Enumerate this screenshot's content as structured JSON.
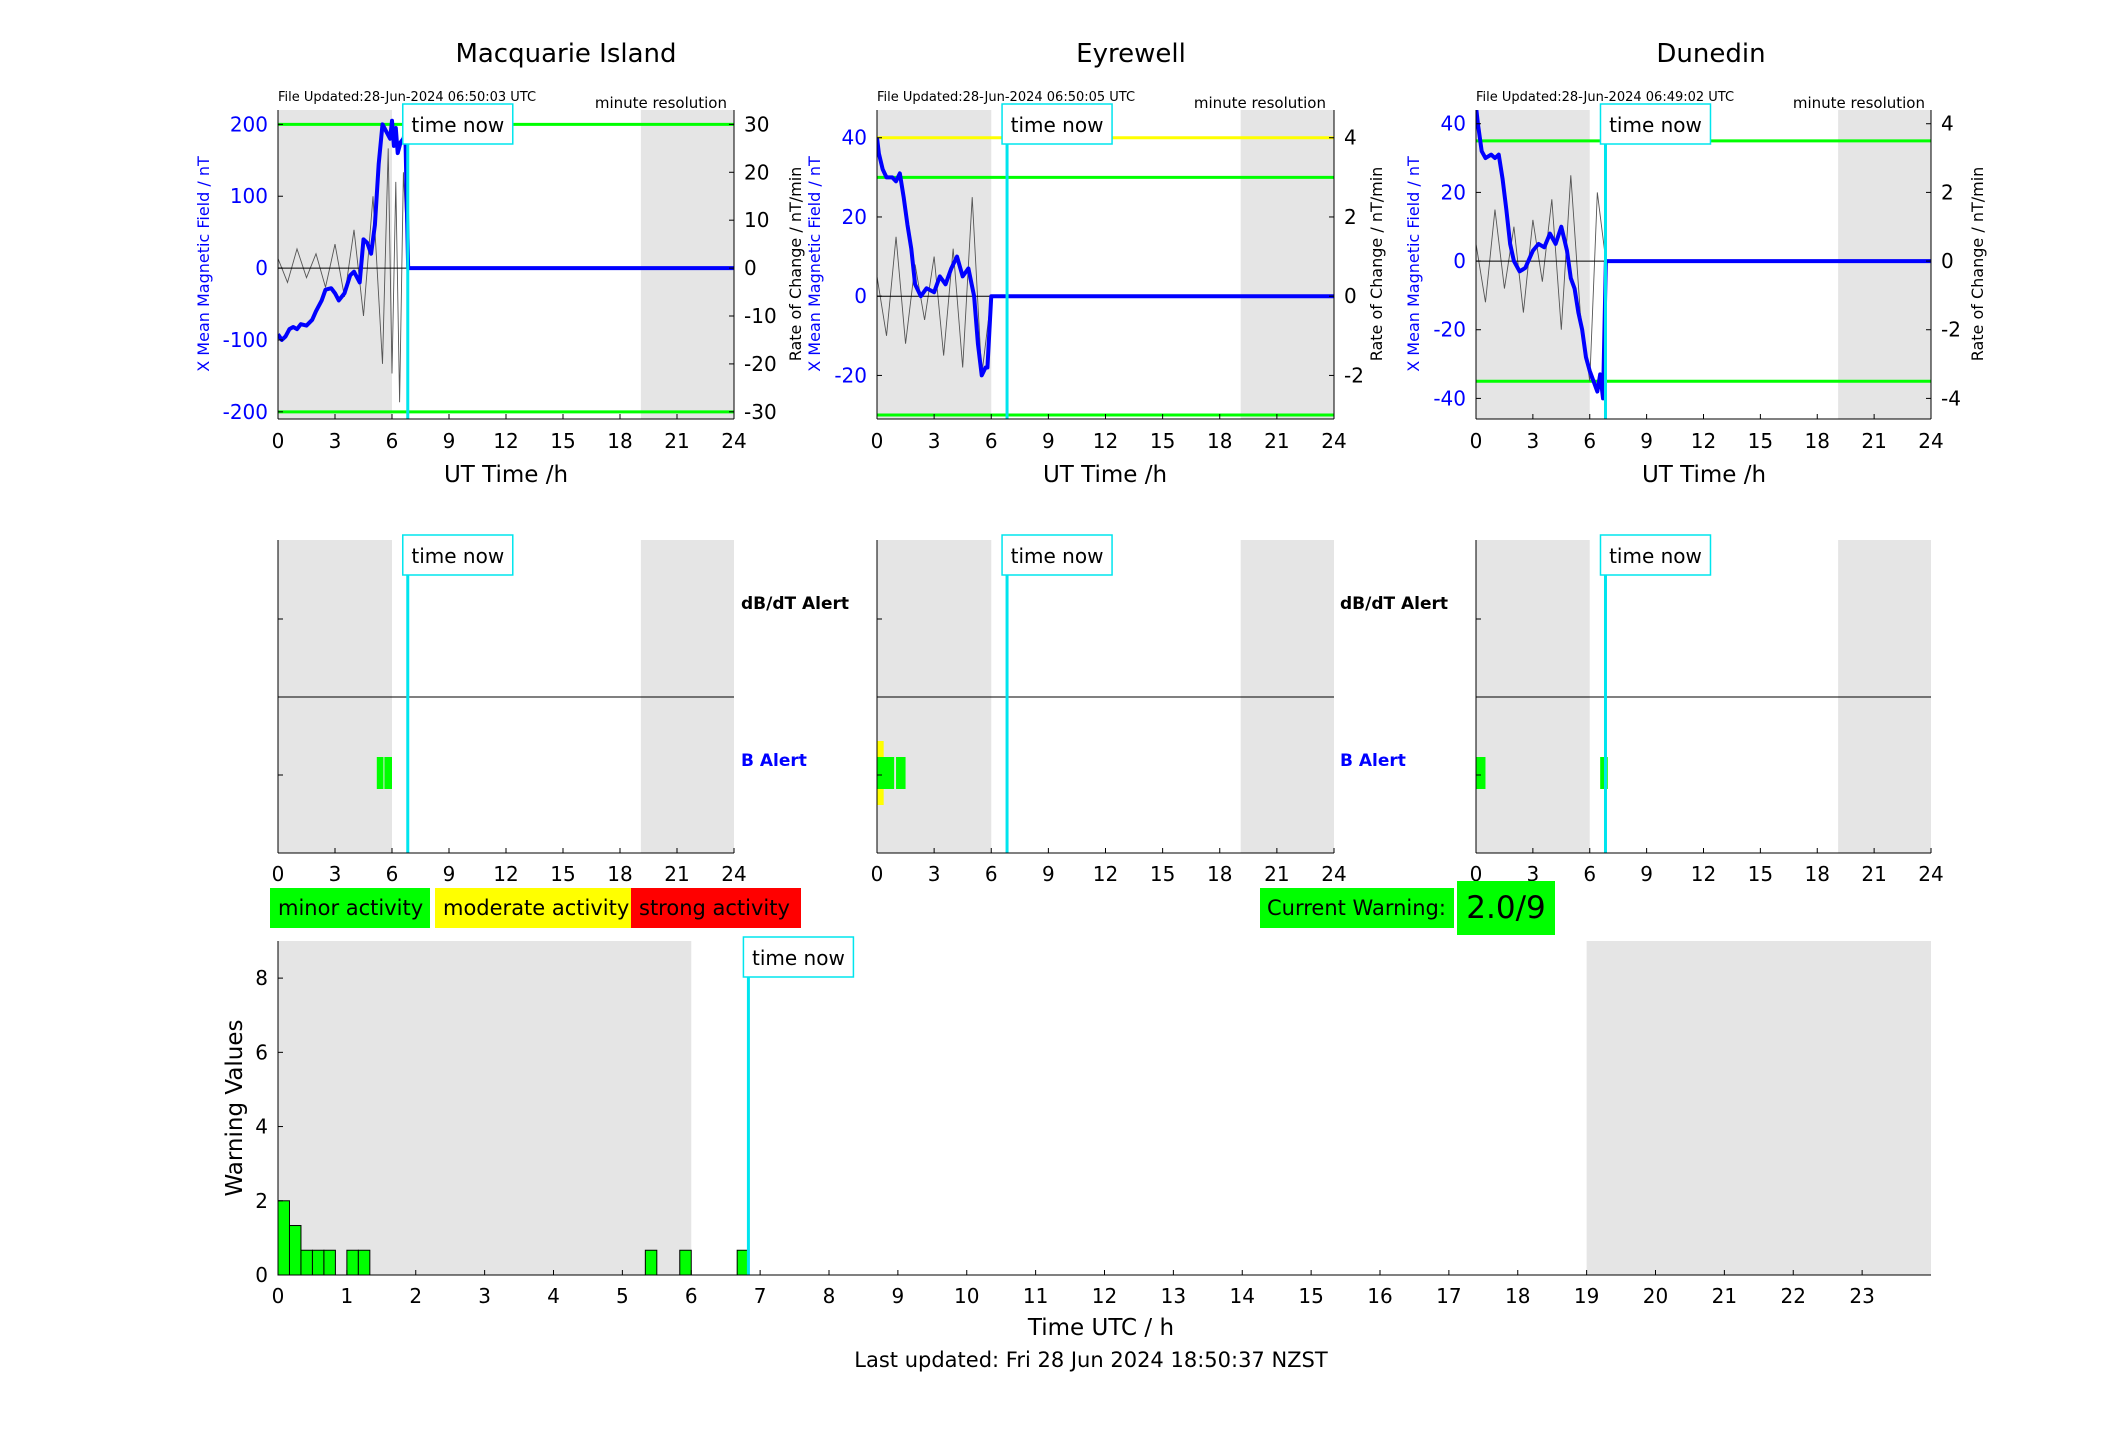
{
  "colors": {
    "axis": "#000000",
    "night_shade": "#e5e5e5",
    "b_field_line": "#0000ff",
    "rate_trace": "#555555",
    "time_now": "#00e5ee",
    "threshold_green": "#00ff00",
    "threshold_yellow": "#ffff00",
    "minor": "#00ff00",
    "moderate": "#ffff00",
    "strong": "#ff0000"
  },
  "time_now_label": "time now",
  "resolution_label": "minute resolution",
  "top_panels": [
    {
      "station": "Macquarie Island",
      "file_updated": "File Updated:28-Jun-2024 06:50:03 UTC",
      "ylabel_left": "X Mean Magnetic Field / nT",
      "ylabel_right": "Rate of Change / nT/min",
      "xlabel": "UT Time /h",
      "left_ticks": [
        "-200",
        "-100",
        "0",
        "100",
        "200"
      ],
      "right_ticks": [
        "-30",
        "-20",
        "-10",
        "0",
        "10",
        "20",
        "30"
      ],
      "x_ticks": [
        "0",
        "3",
        "6",
        "9",
        "12",
        "15",
        "18",
        "21",
        "24"
      ]
    },
    {
      "station": "Eyrewell",
      "file_updated": "File Updated:28-Jun-2024 06:50:05 UTC",
      "ylabel_left": "X Mean Magnetic Field / nT",
      "ylabel_right": "Rate of Change / nT/min",
      "xlabel": "UT Time /h",
      "left_ticks": [
        "-20",
        "0",
        "20",
        "40"
      ],
      "right_ticks": [
        "-2",
        "0",
        "2",
        "4"
      ],
      "x_ticks": [
        "0",
        "3",
        "6",
        "9",
        "12",
        "15",
        "18",
        "21",
        "24"
      ]
    },
    {
      "station": "Dunedin",
      "file_updated": "File Updated:28-Jun-2024 06:49:02 UTC",
      "ylabel_left": "X Mean Magnetic Field / nT",
      "ylabel_right": "Rate of Change / nT/min",
      "xlabel": "UT Time /h",
      "left_ticks": [
        "-40",
        "-20",
        "0",
        "20",
        "40"
      ],
      "right_ticks": [
        "-4",
        "-2",
        "0",
        "2",
        "4"
      ],
      "x_ticks": [
        "0",
        "3",
        "6",
        "9",
        "12",
        "15",
        "18",
        "21",
        "24"
      ]
    }
  ],
  "alert_panels": {
    "dbdt_label": "dB/dT Alert",
    "b_label": "B Alert",
    "x_ticks": [
      "0",
      "3",
      "6",
      "9",
      "12",
      "15",
      "18",
      "21",
      "24"
    ]
  },
  "legend": {
    "minor": "minor activity",
    "moderate": "moderate activity",
    "strong": "strong activity"
  },
  "current_warning": {
    "label": "Current Warning:",
    "value": "2.0/9"
  },
  "warning_chart": {
    "ylabel": "Warning Values",
    "xlabel": "Time UTC / h",
    "y_ticks": [
      "0",
      "2",
      "4",
      "6",
      "8"
    ],
    "x_ticks": [
      "0",
      "1",
      "2",
      "3",
      "4",
      "5",
      "6",
      "7",
      "8",
      "9",
      "10",
      "11",
      "12",
      "13",
      "14",
      "15",
      "16",
      "17",
      "18",
      "19",
      "20",
      "21",
      "22",
      "23"
    ]
  },
  "footer": "Last updated: Fri 28 Jun 2024 18:50:37 NZST",
  "chart_data": [
    {
      "type": "line",
      "title": "Macquarie Island",
      "xlabel": "UT Time /h",
      "ylabel": "X Mean Magnetic Field / nT",
      "ylabel_right": "Rate of Change / nT/min",
      "xlim": [
        0,
        24
      ],
      "ylim": [
        -210,
        220
      ],
      "ylim_right": [
        -31.5,
        33
      ],
      "night_shading_h": [
        [
          0,
          6
        ],
        [
          19.1,
          24
        ]
      ],
      "time_now_h": 6.83,
      "thresholds_nT": [
        200,
        -200
      ],
      "series": [
        {
          "x": [
            0,
            0.2,
            0.4,
            0.6,
            0.8,
            1.0,
            1.2,
            1.5,
            1.8,
            2.0,
            2.3,
            2.5,
            2.8,
            3.0,
            3.2,
            3.5,
            3.8,
            4.0,
            4.3,
            4.5,
            4.7,
            4.9,
            5.1,
            5.3,
            5.5,
            5.7,
            5.9,
            6.0,
            6.1,
            6.2,
            6.3,
            6.45,
            6.6,
            6.7,
            6.85,
            24
          ],
          "y": [
            -92,
            -100,
            -95,
            -85,
            -82,
            -85,
            -78,
            -80,
            -72,
            -60,
            -45,
            -30,
            -28,
            -35,
            -45,
            -35,
            -10,
            -5,
            -20,
            40,
            35,
            20,
            60,
            145,
            200,
            190,
            180,
            205,
            170,
            195,
            160,
            175,
            180,
            190,
            0,
            0
          ]
        },
        {
          "type": "rate_of_change",
          "x": [
            0,
            0.5,
            1.0,
            1.5,
            2.0,
            2.5,
            3.0,
            3.5,
            4.0,
            4.5,
            5.0,
            5.5,
            5.8,
            6.0,
            6.2,
            6.4,
            6.6,
            6.85,
            24
          ],
          "y": [
            2,
            -3,
            4,
            -2,
            3,
            -4,
            5,
            -6,
            8,
            -10,
            15,
            -20,
            25,
            -22,
            18,
            -28,
            20,
            0,
            0
          ]
        }
      ]
    },
    {
      "type": "line",
      "title": "Eyrewell",
      "xlabel": "UT Time /h",
      "ylabel": "X Mean Magnetic Field / nT",
      "ylabel_right": "Rate of Change / nT/min",
      "xlim": [
        0,
        24
      ],
      "ylim": [
        -31,
        47
      ],
      "ylim_right": [
        -3.1,
        4.7
      ],
      "night_shading_h": [
        [
          0,
          6
        ],
        [
          19.1,
          24
        ]
      ],
      "time_now_h": 6.83,
      "thresholds_nT": [
        40,
        30,
        -30
      ],
      "series": [
        {
          "x": [
            0,
            0.1,
            0.3,
            0.5,
            0.8,
            1.0,
            1.2,
            1.4,
            1.6,
            1.8,
            2.0,
            2.3,
            2.6,
            3.0,
            3.3,
            3.6,
            3.9,
            4.2,
            4.5,
            4.8,
            5.1,
            5.3,
            5.5,
            5.7,
            5.8,
            6.0,
            24
          ],
          "y": [
            40,
            36,
            32,
            30,
            30,
            29,
            31,
            25,
            18,
            12,
            3,
            0,
            2,
            1,
            5,
            3,
            7,
            10,
            5,
            7,
            0,
            -12,
            -20,
            -18,
            -18,
            0,
            0
          ]
        },
        {
          "type": "rate_of_change",
          "x": [
            0,
            0.5,
            1.0,
            1.5,
            2.0,
            2.5,
            3.0,
            3.5,
            4.0,
            4.5,
            5.0,
            5.5,
            6.0,
            24
          ],
          "y": [
            0.5,
            -1.0,
            1.5,
            -1.2,
            0.8,
            -0.6,
            1.0,
            -1.5,
            1.2,
            -1.8,
            2.5,
            -2.0,
            0,
            0
          ]
        }
      ]
    },
    {
      "type": "line",
      "title": "Dunedin",
      "xlabel": "UT Time /h",
      "ylabel": "X Mean Magnetic Field / nT",
      "ylabel_right": "Rate of Change / nT/min",
      "xlim": [
        0,
        24
      ],
      "ylim": [
        -46,
        44
      ],
      "ylim_right": [
        -4.6,
        4.4
      ],
      "night_shading_h": [
        [
          0,
          6
        ],
        [
          19.1,
          24
        ]
      ],
      "time_now_h": 6.83,
      "thresholds_nT": [
        35,
        -35
      ],
      "series": [
        {
          "x": [
            0,
            0.1,
            0.3,
            0.5,
            0.8,
            1.0,
            1.2,
            1.4,
            1.6,
            1.8,
            2.0,
            2.3,
            2.6,
            3.0,
            3.3,
            3.6,
            3.9,
            4.2,
            4.5,
            4.8,
            5.0,
            5.2,
            5.4,
            5.6,
            5.8,
            6.0,
            6.2,
            6.4,
            6.55,
            6.7,
            6.85,
            24
          ],
          "y": [
            45,
            40,
            32,
            30,
            31,
            30,
            31,
            24,
            15,
            5,
            0,
            -3,
            -2,
            3,
            5,
            4,
            8,
            5,
            10,
            3,
            -5,
            -8,
            -15,
            -20,
            -28,
            -32,
            -35,
            -38,
            -33,
            -40,
            0,
            0
          ]
        },
        {
          "type": "rate_of_change",
          "x": [
            0,
            0.5,
            1.0,
            1.5,
            2.0,
            2.5,
            3.0,
            3.5,
            4.0,
            4.5,
            5.0,
            5.5,
            6.0,
            6.4,
            6.85,
            24
          ],
          "y": [
            0.5,
            -1.2,
            1.5,
            -0.8,
            1.0,
            -1.5,
            1.2,
            -0.6,
            1.8,
            -2.0,
            2.5,
            -1.5,
            -3.5,
            2.0,
            0,
            0
          ]
        }
      ]
    },
    {
      "type": "bar",
      "title": "Alert status",
      "rows": [
        "dB/dT Alert",
        "B Alert"
      ],
      "xlim": [
        0,
        24
      ],
      "stations": [
        {
          "name": "Macquarie Island",
          "b_alert_intervals_h": [
            [
              5.2,
              5.55
            ],
            [
              5.6,
              6.0
            ]
          ],
          "b_alert_level": [
            "minor",
            "minor"
          ]
        },
        {
          "name": "Eyrewell",
          "b_alert_intervals_h": [
            [
              0,
              0.35
            ],
            [
              0,
              0.9
            ],
            [
              1.0,
              1.5
            ]
          ],
          "b_alert_level": [
            "moderate",
            "minor",
            "minor"
          ]
        },
        {
          "name": "Dunedin",
          "b_alert_intervals_h": [
            [
              0,
              0.5
            ],
            [
              6.55,
              6.95
            ]
          ],
          "b_alert_level": [
            "minor",
            "minor"
          ]
        }
      ]
    },
    {
      "type": "bar",
      "title": "",
      "xlabel": "Time UTC / h",
      "ylabel": "Warning Values",
      "xlim": [
        0,
        24
      ],
      "ylim": [
        0,
        9
      ],
      "night_shading_h": [
        [
          0,
          6
        ],
        [
          19,
          24
        ]
      ],
      "time_now_h": 6.83,
      "bar_width_h": 0.1667,
      "x": [
        0,
        0.1667,
        0.3333,
        0.5,
        0.6667,
        1.0,
        1.1667,
        5.3333,
        5.8333,
        6.6667
      ],
      "values": [
        2.0,
        1.333,
        0.667,
        0.667,
        0.667,
        0.667,
        0.667,
        0.667,
        0.667,
        0.667
      ]
    }
  ]
}
